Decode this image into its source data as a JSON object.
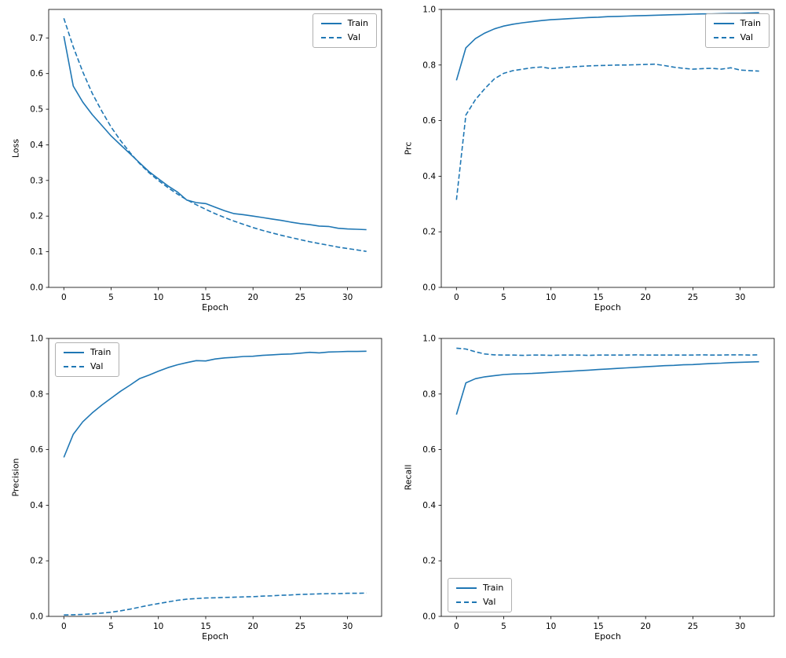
{
  "figure": {
    "background": "#ffffff",
    "line_color": "#1f77b4"
  },
  "chart_data": [
    {
      "type": "line",
      "title": "",
      "xlabel": "Epoch",
      "ylabel": "Loss",
      "xlim": [
        -1.6,
        33.6
      ],
      "ylim": [
        0,
        0.78
      ],
      "grid": false,
      "legend_position": "upper right",
      "xticks": [
        0,
        5,
        10,
        15,
        20,
        25,
        30
      ],
      "xtick_labels": [
        "0",
        "5",
        "10",
        "15",
        "20",
        "25",
        "30"
      ],
      "yticks": [
        0.0,
        0.1,
        0.2,
        0.3,
        0.4,
        0.5,
        0.6,
        0.7
      ],
      "ytick_labels": [
        "0.0",
        "0.1",
        "0.2",
        "0.3",
        "0.4",
        "0.5",
        "0.6",
        "0.7"
      ],
      "x": [
        0,
        1,
        2,
        3,
        4,
        5,
        6,
        7,
        8,
        9,
        10,
        11,
        12,
        13,
        14,
        15,
        16,
        17,
        18,
        19,
        20,
        21,
        22,
        23,
        24,
        25,
        26,
        27,
        28,
        29,
        30,
        31,
        32
      ],
      "series": [
        {
          "name": "Train",
          "style": "solid",
          "color": "#1f77b4",
          "values": [
            0.705,
            0.565,
            0.52,
            0.485,
            0.455,
            0.425,
            0.4,
            0.375,
            0.35,
            0.325,
            0.305,
            0.285,
            0.268,
            0.245,
            0.238,
            0.235,
            0.225,
            0.215,
            0.207,
            0.204,
            0.2,
            0.196,
            0.192,
            0.188,
            0.183,
            0.179,
            0.176,
            0.172,
            0.171,
            0.166,
            0.164,
            0.163,
            0.162
          ]
        },
        {
          "name": "Val",
          "style": "dashed",
          "color": "#1f77b4",
          "values": [
            0.755,
            0.675,
            0.605,
            0.545,
            0.495,
            0.45,
            0.412,
            0.378,
            0.348,
            0.322,
            0.3,
            0.28,
            0.262,
            0.246,
            0.232,
            0.219,
            0.207,
            0.196,
            0.186,
            0.177,
            0.168,
            0.16,
            0.153,
            0.146,
            0.14,
            0.134,
            0.128,
            0.123,
            0.118,
            0.113,
            0.109,
            0.105,
            0.101
          ]
        }
      ]
    },
    {
      "type": "line",
      "title": "",
      "xlabel": "Epoch",
      "ylabel": "Prc",
      "xlim": [
        -1.6,
        33.6
      ],
      "ylim": [
        0,
        1.0
      ],
      "grid": false,
      "legend_position": "upper right",
      "xticks": [
        0,
        5,
        10,
        15,
        20,
        25,
        30
      ],
      "xtick_labels": [
        "0",
        "5",
        "10",
        "15",
        "20",
        "25",
        "30"
      ],
      "yticks": [
        0.0,
        0.2,
        0.4,
        0.6,
        0.8,
        1.0
      ],
      "ytick_labels": [
        "0.0",
        "0.2",
        "0.4",
        "0.6",
        "0.8",
        "1.0"
      ],
      "x": [
        0,
        1,
        2,
        3,
        4,
        5,
        6,
        7,
        8,
        9,
        10,
        11,
        12,
        13,
        14,
        15,
        16,
        17,
        18,
        19,
        20,
        21,
        22,
        23,
        24,
        25,
        26,
        27,
        28,
        29,
        30,
        31,
        32
      ],
      "series": [
        {
          "name": "Train",
          "style": "solid",
          "color": "#1f77b4",
          "values": [
            0.745,
            0.862,
            0.895,
            0.915,
            0.93,
            0.94,
            0.947,
            0.952,
            0.956,
            0.96,
            0.963,
            0.965,
            0.967,
            0.969,
            0.971,
            0.972,
            0.974,
            0.975,
            0.976,
            0.977,
            0.978,
            0.979,
            0.98,
            0.981,
            0.982,
            0.983,
            0.984,
            0.984,
            0.985,
            0.986,
            0.986,
            0.987,
            0.988
          ]
        },
        {
          "name": "Val",
          "style": "dashed",
          "color": "#1f77b4",
          "values": [
            0.315,
            0.62,
            0.675,
            0.715,
            0.75,
            0.77,
            0.78,
            0.785,
            0.79,
            0.793,
            0.787,
            0.79,
            0.793,
            0.795,
            0.797,
            0.798,
            0.799,
            0.8,
            0.8,
            0.801,
            0.802,
            0.803,
            0.798,
            0.792,
            0.788,
            0.785,
            0.787,
            0.788,
            0.785,
            0.79,
            0.782,
            0.78,
            0.778
          ]
        }
      ]
    },
    {
      "type": "line",
      "title": "",
      "xlabel": "Epoch",
      "ylabel": "Precision",
      "xlim": [
        -1.6,
        33.6
      ],
      "ylim": [
        0,
        1.0
      ],
      "grid": false,
      "legend_position": "upper left",
      "xticks": [
        0,
        5,
        10,
        15,
        20,
        25,
        30
      ],
      "xtick_labels": [
        "0",
        "5",
        "10",
        "15",
        "20",
        "25",
        "30"
      ],
      "yticks": [
        0.0,
        0.2,
        0.4,
        0.6,
        0.8,
        1.0
      ],
      "ytick_labels": [
        "0.0",
        "0.2",
        "0.4",
        "0.6",
        "0.8",
        "1.0"
      ],
      "x": [
        0,
        1,
        2,
        3,
        4,
        5,
        6,
        7,
        8,
        9,
        10,
        11,
        12,
        13,
        14,
        15,
        16,
        17,
        18,
        19,
        20,
        21,
        22,
        23,
        24,
        25,
        26,
        27,
        28,
        29,
        30,
        31,
        32
      ],
      "series": [
        {
          "name": "Train",
          "style": "solid",
          "color": "#1f77b4",
          "values": [
            0.572,
            0.655,
            0.7,
            0.732,
            0.76,
            0.785,
            0.81,
            0.832,
            0.855,
            0.868,
            0.882,
            0.895,
            0.905,
            0.913,
            0.92,
            0.919,
            0.926,
            0.93,
            0.932,
            0.935,
            0.936,
            0.939,
            0.941,
            0.943,
            0.944,
            0.947,
            0.95,
            0.948,
            0.951,
            0.952,
            0.953,
            0.953,
            0.954
          ]
        },
        {
          "name": "Val",
          "style": "dashed",
          "color": "#1f77b4",
          "values": [
            0.005,
            0.006,
            0.007,
            0.009,
            0.012,
            0.015,
            0.02,
            0.026,
            0.033,
            0.04,
            0.046,
            0.052,
            0.058,
            0.062,
            0.064,
            0.066,
            0.067,
            0.068,
            0.069,
            0.07,
            0.071,
            0.073,
            0.074,
            0.076,
            0.077,
            0.079,
            0.08,
            0.081,
            0.082,
            0.082,
            0.083,
            0.083,
            0.084
          ]
        }
      ]
    },
    {
      "type": "line",
      "title": "",
      "xlabel": "Epoch",
      "ylabel": "Recall",
      "xlim": [
        -1.6,
        33.6
      ],
      "ylim": [
        0,
        1.0
      ],
      "grid": false,
      "legend_position": "lower left",
      "xticks": [
        0,
        5,
        10,
        15,
        20,
        25,
        30
      ],
      "xtick_labels": [
        "0",
        "5",
        "10",
        "15",
        "20",
        "25",
        "30"
      ],
      "yticks": [
        0.0,
        0.2,
        0.4,
        0.6,
        0.8,
        1.0
      ],
      "ytick_labels": [
        "0.0",
        "0.2",
        "0.4",
        "0.6",
        "0.8",
        "1.0"
      ],
      "x": [
        0,
        1,
        2,
        3,
        4,
        5,
        6,
        7,
        8,
        9,
        10,
        11,
        12,
        13,
        14,
        15,
        16,
        17,
        18,
        19,
        20,
        21,
        22,
        23,
        24,
        25,
        26,
        27,
        28,
        29,
        30,
        31,
        32
      ],
      "series": [
        {
          "name": "Train",
          "style": "solid",
          "color": "#1f77b4",
          "values": [
            0.726,
            0.84,
            0.855,
            0.862,
            0.866,
            0.87,
            0.872,
            0.873,
            0.874,
            0.876,
            0.878,
            0.88,
            0.882,
            0.884,
            0.886,
            0.888,
            0.89,
            0.892,
            0.894,
            0.896,
            0.898,
            0.9,
            0.902,
            0.903,
            0.905,
            0.906,
            0.908,
            0.91,
            0.911,
            0.913,
            0.914,
            0.915,
            0.916
          ]
        },
        {
          "name": "Val",
          "style": "dashed",
          "color": "#1f77b4",
          "values": [
            0.965,
            0.962,
            0.952,
            0.944,
            0.941,
            0.94,
            0.94,
            0.939,
            0.94,
            0.94,
            0.939,
            0.94,
            0.94,
            0.94,
            0.939,
            0.94,
            0.94,
            0.94,
            0.94,
            0.941,
            0.94,
            0.94,
            0.94,
            0.94,
            0.94,
            0.94,
            0.941,
            0.94,
            0.94,
            0.941,
            0.941,
            0.94,
            0.941
          ]
        }
      ]
    }
  ]
}
